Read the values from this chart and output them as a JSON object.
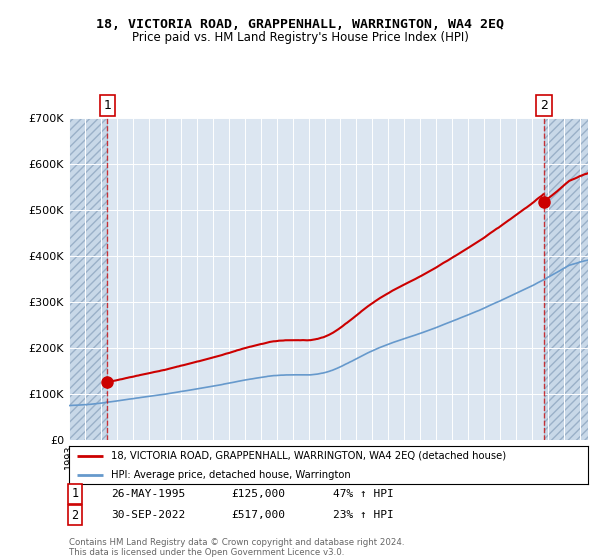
{
  "title1": "18, VICTORIA ROAD, GRAPPENHALL, WARRINGTON, WA4 2EQ",
  "title2": "Price paid vs. HM Land Registry's House Price Index (HPI)",
  "background_color": "#ffffff",
  "plot_bg_color": "#dce6f1",
  "grid_color": "#ffffff",
  "sale1_date": 1995.4,
  "sale1_price": 125000,
  "sale2_date": 2022.75,
  "sale2_price": 517000,
  "ylim": [
    0,
    700000
  ],
  "xlim": [
    1993.0,
    2025.5
  ],
  "legend_line1": "18, VICTORIA ROAD, GRAPPENHALL, WARRINGTON, WA4 2EQ (detached house)",
  "legend_line2": "HPI: Average price, detached house, Warrington",
  "note1_date": "26-MAY-1995",
  "note1_price": "£125,000",
  "note1_hpi": "47% ↑ HPI",
  "note2_date": "30-SEP-2022",
  "note2_price": "£517,000",
  "note2_hpi": "23% ↑ HPI",
  "footer": "Contains HM Land Registry data © Crown copyright and database right 2024.\nThis data is licensed under the Open Government Licence v3.0.",
  "red_color": "#cc0000",
  "blue_color": "#6699cc"
}
